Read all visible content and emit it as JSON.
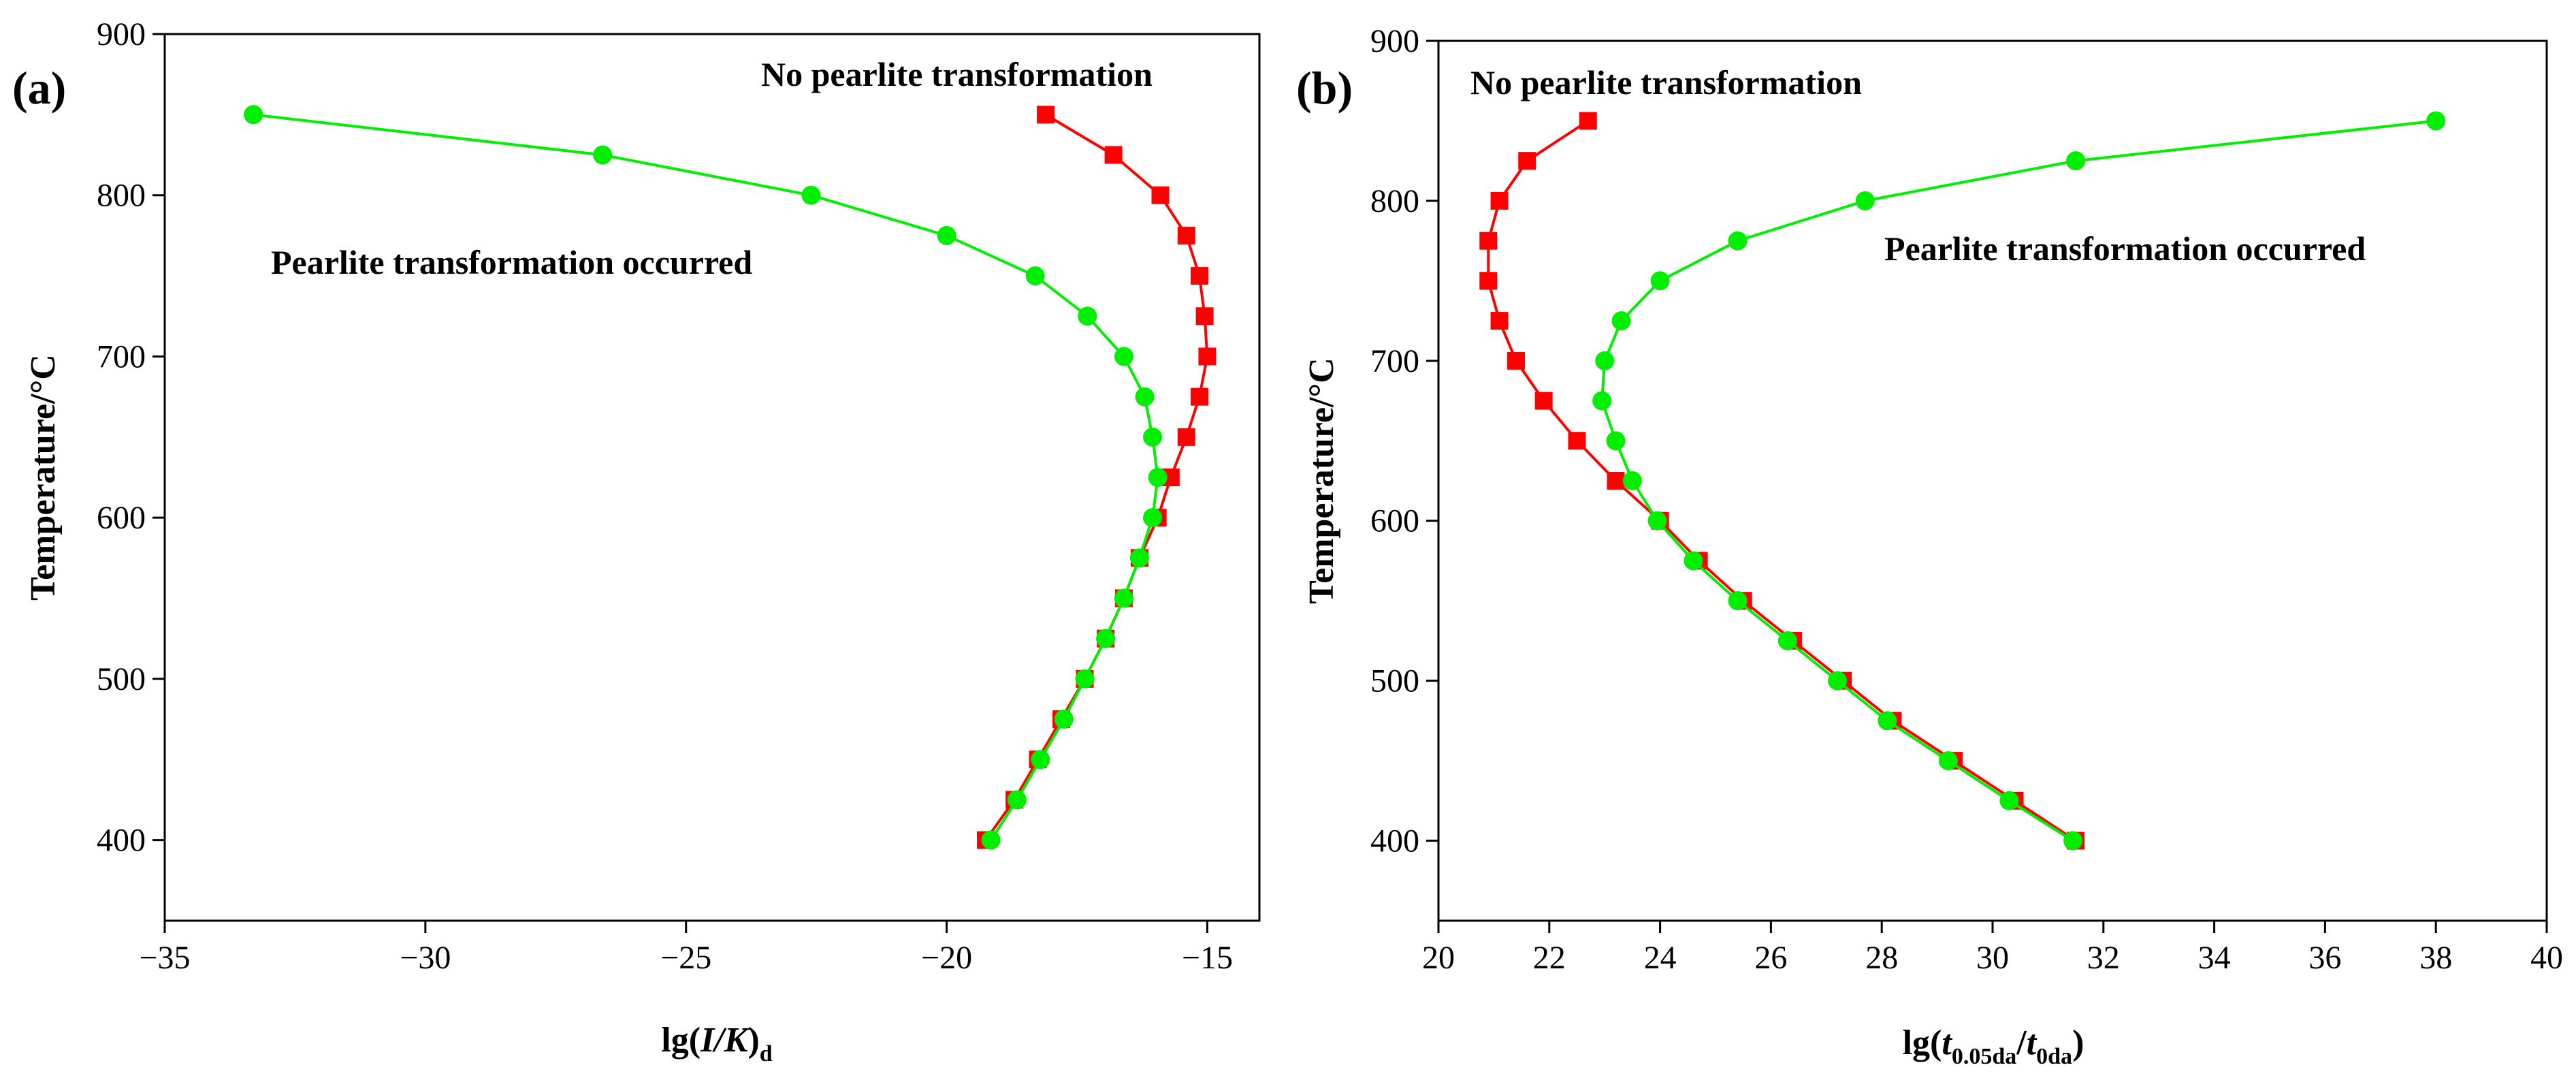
{
  "chart_data": [
    {
      "type": "line",
      "panel_label": "(a)",
      "title": "",
      "xlabel": "lg(I/K)d",
      "xlabel_parts": {
        "prefix": "lg(",
        "italic": "I/K",
        "suffix": ")",
        "subscript": "d"
      },
      "ylabel": "Temperature/°C",
      "xlim": [
        -35,
        -14
      ],
      "ylim": [
        350,
        900
      ],
      "xticks": [
        -35,
        -30,
        -25,
        -20,
        -15
      ],
      "xtick_labels": [
        "−35",
        "−30",
        "−25",
        "−20",
        "−15"
      ],
      "yticks": [
        400,
        500,
        600,
        700,
        800,
        900
      ],
      "ytick_labels": [
        "400",
        "500",
        "600",
        "700",
        "800",
        "900"
      ],
      "grid": false,
      "annotations": [
        "No pearlite transformation",
        "Pearlite transformation occurred"
      ],
      "series": [
        {
          "name": "red",
          "color": "#ff0000",
          "marker": "square",
          "points": [
            [
              -18.1,
              850
            ],
            [
              -16.8,
              825
            ],
            [
              -15.9,
              800
            ],
            [
              -15.4,
              775
            ],
            [
              -15.15,
              750
            ],
            [
              -15.05,
              725
            ],
            [
              -15.0,
              700
            ],
            [
              -15.15,
              675
            ],
            [
              -15.4,
              650
            ],
            [
              -15.7,
              625
            ],
            [
              -15.95,
              600
            ],
            [
              -16.3,
              575
            ],
            [
              -16.6,
              550
            ],
            [
              -16.95,
              525
            ],
            [
              -17.35,
              500
            ],
            [
              -17.8,
              475
            ],
            [
              -18.25,
              450
            ],
            [
              -18.7,
              425
            ],
            [
              -19.25,
              400
            ]
          ]
        },
        {
          "name": "green",
          "color": "#00ee00",
          "marker": "circle",
          "points": [
            [
              -33.3,
              850
            ],
            [
              -26.6,
              825
            ],
            [
              -22.6,
              800
            ],
            [
              -20.0,
              775
            ],
            [
              -18.3,
              750
            ],
            [
              -17.3,
              725
            ],
            [
              -16.6,
              700
            ],
            [
              -16.2,
              675
            ],
            [
              -16.05,
              650
            ],
            [
              -15.95,
              625
            ],
            [
              -16.05,
              600
            ],
            [
              -16.3,
              575
            ],
            [
              -16.6,
              550
            ],
            [
              -16.95,
              525
            ],
            [
              -17.35,
              500
            ],
            [
              -17.75,
              475
            ],
            [
              -18.2,
              450
            ],
            [
              -18.65,
              425
            ],
            [
              -19.15,
              400
            ]
          ]
        }
      ]
    },
    {
      "type": "line",
      "panel_label": "(b)",
      "title": "",
      "xlabel": "lg(t0.05da/t0da)",
      "xlabel_parts": {
        "prefix": "lg(",
        "t1": "t",
        "sub1": "0.05da",
        "mid": "/",
        "t2": "t",
        "sub2": "0da",
        "suffix": ")"
      },
      "ylabel": "Temperature/°C",
      "xlim": [
        20,
        40
      ],
      "ylim": [
        350,
        900
      ],
      "xticks": [
        20,
        22,
        24,
        26,
        28,
        30,
        32,
        34,
        36,
        38,
        40
      ],
      "xtick_labels": [
        "20",
        "22",
        "24",
        "26",
        "28",
        "30",
        "32",
        "34",
        "36",
        "38",
        "40"
      ],
      "yticks": [
        400,
        500,
        600,
        700,
        800,
        900
      ],
      "ytick_labels": [
        "400",
        "500",
        "600",
        "700",
        "800",
        "900"
      ],
      "grid": false,
      "annotations": [
        "No pearlite transformation",
        "Pearlite transformation occurred"
      ],
      "series": [
        {
          "name": "red",
          "color": "#ff0000",
          "marker": "square",
          "points": [
            [
              22.7,
              850
            ],
            [
              21.6,
              825
            ],
            [
              21.1,
              800
            ],
            [
              20.9,
              775
            ],
            [
              20.9,
              750
            ],
            [
              21.1,
              725
            ],
            [
              21.4,
              700
            ],
            [
              21.9,
              675
            ],
            [
              22.5,
              650
            ],
            [
              23.2,
              625
            ],
            [
              24.0,
              600
            ],
            [
              24.7,
              575
            ],
            [
              25.5,
              550
            ],
            [
              26.4,
              525
            ],
            [
              27.3,
              500
            ],
            [
              28.2,
              475
            ],
            [
              29.3,
              450
            ],
            [
              30.4,
              425
            ],
            [
              31.5,
              400
            ]
          ]
        },
        {
          "name": "green",
          "color": "#00ee00",
          "marker": "circle",
          "points": [
            [
              38.0,
              850
            ],
            [
              31.5,
              825
            ],
            [
              27.7,
              800
            ],
            [
              25.4,
              775
            ],
            [
              24.0,
              750
            ],
            [
              23.3,
              725
            ],
            [
              23.0,
              700
            ],
            [
              22.95,
              675
            ],
            [
              23.2,
              650
            ],
            [
              23.5,
              625
            ],
            [
              23.95,
              600
            ],
            [
              24.6,
              575
            ],
            [
              25.4,
              550
            ],
            [
              26.3,
              525
            ],
            [
              27.2,
              500
            ],
            [
              28.1,
              475
            ],
            [
              29.2,
              450
            ],
            [
              30.3,
              425
            ],
            [
              31.45,
              400
            ]
          ]
        }
      ]
    }
  ]
}
